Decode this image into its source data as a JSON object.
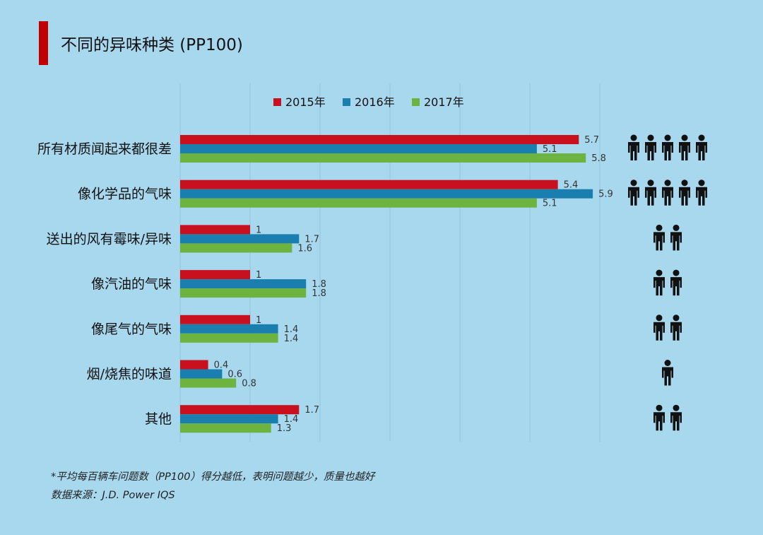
{
  "title": "不同的异味种类 (PP100)",
  "colors": {
    "background": "#a8d8ee",
    "accent": "#c00000",
    "series": [
      "#c8101e",
      "#1a7fae",
      "#6db33f"
    ],
    "grid": "#93c4dd",
    "icon": "#111111"
  },
  "chart_data": {
    "type": "bar",
    "orientation": "horizontal",
    "title": "不同的异味种类 (PP100)",
    "categories": [
      "所有材质闻起来都很差",
      "像化学品的气味",
      "送出的风有霉味/异味",
      "像汽油的气味",
      "像尾气的气味",
      "烟/烧焦的味道",
      "其他"
    ],
    "series": [
      {
        "name": "2015年",
        "values": [
          5.7,
          5.4,
          1,
          1,
          1,
          0.4,
          1.7
        ]
      },
      {
        "name": "2016年",
        "values": [
          5.1,
          5.9,
          1.7,
          1.8,
          1.4,
          0.6,
          1.4
        ]
      },
      {
        "name": "2017年",
        "values": [
          5.8,
          5.1,
          1.6,
          1.8,
          1.4,
          0.8,
          1.3
        ]
      }
    ],
    "xlim": [
      0,
      6
    ],
    "grid": true,
    "legend_position": "top",
    "person_icons": [
      5,
      5,
      2,
      2,
      2,
      1,
      2
    ]
  },
  "footnotes": [
    "*平均每百辆车问题数（PP100）得分越低，表明问题越少，质量也越好",
    "数据来源：J.D. Power IQS"
  ]
}
